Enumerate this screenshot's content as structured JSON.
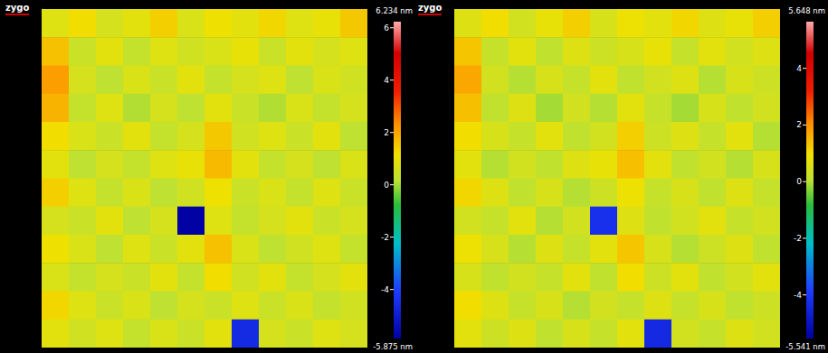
{
  "chart_data": [
    {
      "type": "heatmap",
      "logo": "zygo",
      "tick_labels": false,
      "cells": [
        [
          0.8,
          1.2,
          0.6,
          0.9,
          1.4,
          0.7,
          1.1,
          0.9,
          1.3,
          0.8,
          1.0,
          1.5
        ],
        [
          1.6,
          0.4,
          0.9,
          0.3,
          0.8,
          0.5,
          0.7,
          1.0,
          0.4,
          0.9,
          0.6,
          0.8
        ],
        [
          2.1,
          0.6,
          0.2,
          0.7,
          0.4,
          0.9,
          0.3,
          0.6,
          0.8,
          0.2,
          0.7,
          0.5
        ],
        [
          1.8,
          0.3,
          0.8,
          0.1,
          0.6,
          0.2,
          0.9,
          0.4,
          0.1,
          0.7,
          0.3,
          0.6
        ],
        [
          1.2,
          0.7,
          0.4,
          0.9,
          0.3,
          0.6,
          1.5,
          0.5,
          0.8,
          0.4,
          0.9,
          0.2
        ],
        [
          0.9,
          0.2,
          0.6,
          0.3,
          0.8,
          1.0,
          1.7,
          0.9,
          0.3,
          0.6,
          0.2,
          0.7
        ],
        [
          1.4,
          0.8,
          0.3,
          0.7,
          0.2,
          0.5,
          1.1,
          0.4,
          0.7,
          0.3,
          0.8,
          0.4
        ],
        [
          0.6,
          0.4,
          0.9,
          0.2,
          0.6,
          -5.8,
          0.8,
          0.3,
          0.6,
          0.9,
          0.4,
          0.6
        ],
        [
          1.1,
          0.7,
          0.2,
          0.8,
          0.4,
          0.9,
          1.6,
          0.7,
          0.2,
          0.5,
          0.8,
          0.3
        ],
        [
          0.7,
          0.3,
          0.6,
          0.4,
          0.9,
          0.3,
          1.2,
          0.5,
          0.9,
          0.3,
          0.6,
          0.9
        ],
        [
          1.3,
          0.8,
          0.4,
          0.7,
          0.2,
          0.6,
          0.4,
          0.8,
          0.4,
          0.7,
          0.3,
          0.5
        ],
        [
          0.9,
          0.5,
          0.8,
          0.3,
          0.7,
          0.4,
          0.9,
          -4.6,
          0.6,
          0.4,
          0.8,
          0.6
        ]
      ],
      "colorbar": {
        "range": [
          -5.875,
          6.234
        ],
        "ticks": [
          -4,
          -2,
          0,
          2,
          4,
          6
        ],
        "max_label": "6.234 nm",
        "min_label": "-5.875 nm"
      }
    },
    {
      "type": "heatmap",
      "logo": "zygo",
      "tick_labels": false,
      "cells": [
        [
          0.6,
          1.0,
          0.4,
          0.8,
          1.2,
          0.5,
          0.9,
          0.7,
          1.1,
          0.6,
          0.8,
          1.2
        ],
        [
          1.3,
          0.2,
          0.7,
          0.1,
          0.6,
          0.3,
          0.5,
          0.8,
          0.2,
          0.7,
          0.4,
          0.6
        ],
        [
          1.7,
          0.4,
          0.0,
          0.5,
          0.2,
          0.7,
          0.1,
          0.4,
          0.6,
          0.0,
          0.5,
          0.3
        ],
        [
          1.4,
          0.1,
          0.6,
          -0.1,
          0.4,
          0.0,
          0.7,
          0.2,
          -0.1,
          0.5,
          0.1,
          0.4
        ],
        [
          1.0,
          0.5,
          0.2,
          0.7,
          0.1,
          0.4,
          1.2,
          0.3,
          0.6,
          0.2,
          0.7,
          0.0
        ],
        [
          0.7,
          0.0,
          0.4,
          0.1,
          0.6,
          0.8,
          1.4,
          0.7,
          0.1,
          0.4,
          0.0,
          0.5
        ],
        [
          1.1,
          0.6,
          0.1,
          0.5,
          0.0,
          0.3,
          0.9,
          0.2,
          0.5,
          0.1,
          0.6,
          0.2
        ],
        [
          0.4,
          0.2,
          0.7,
          0.0,
          0.4,
          -4.2,
          0.6,
          0.1,
          0.4,
          0.7,
          0.2,
          0.4
        ],
        [
          0.9,
          0.5,
          0.0,
          0.6,
          0.2,
          0.7,
          1.3,
          0.5,
          0.0,
          0.3,
          0.6,
          0.1
        ],
        [
          0.5,
          0.1,
          0.4,
          0.2,
          0.7,
          0.1,
          1.0,
          0.3,
          0.7,
          0.1,
          0.4,
          0.7
        ],
        [
          1.0,
          0.6,
          0.2,
          0.5,
          0.0,
          0.4,
          0.2,
          0.6,
          0.2,
          0.5,
          0.1,
          0.3
        ],
        [
          0.7,
          0.3,
          0.6,
          0.1,
          0.5,
          0.2,
          0.7,
          -4.4,
          0.4,
          0.2,
          0.6,
          0.4
        ]
      ],
      "colorbar": {
        "range": [
          -5.541,
          5.648
        ],
        "ticks": [
          -4,
          -2,
          0,
          2,
          4
        ],
        "max_label": "5.648 nm",
        "min_label": "-5.541 nm"
      }
    }
  ]
}
